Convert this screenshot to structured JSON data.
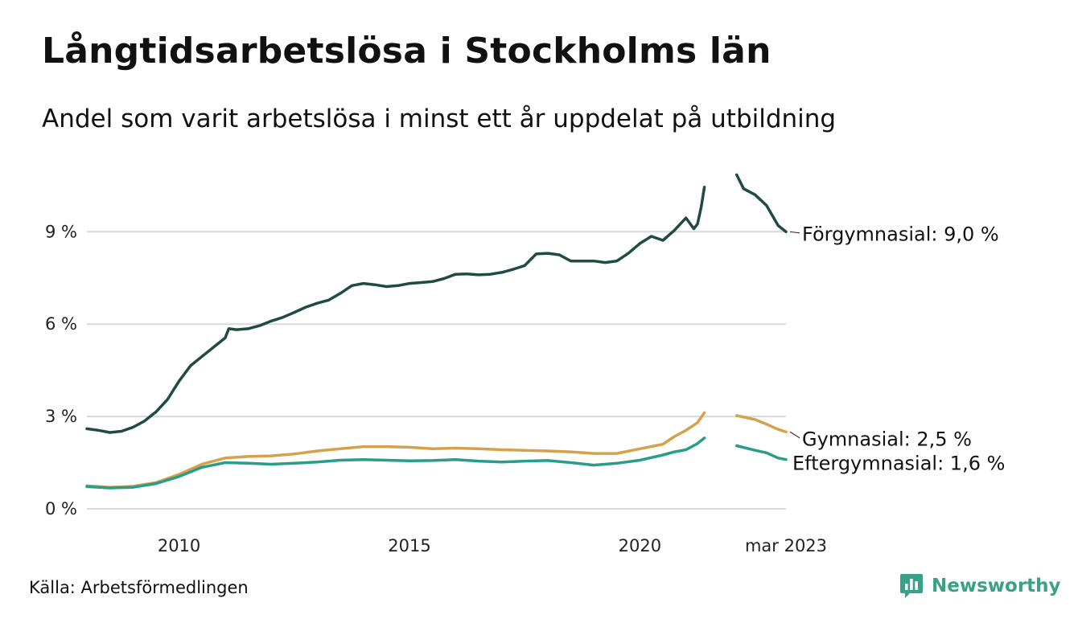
{
  "title": "Långtidsarbetslösa i Stockholms län",
  "subtitle": "Andel som varit arbetslösa i minst ett år uppdelat på utbildning",
  "source": "Källa: Arbetsförmedlingen",
  "brand": {
    "name": "Newsworthy",
    "icon": "newsworthy-logo-icon",
    "color": "#3aa088"
  },
  "chart_data": {
    "type": "line",
    "title": "Långtidsarbetslösa i Stockholms län",
    "subtitle": "Andel som varit arbetslösa i minst ett år uppdelat på utbildning",
    "xlabel": "",
    "ylabel": "",
    "xlim": [
      2008.0,
      2023.17
    ],
    "ylim": [
      0,
      11
    ],
    "grid": true,
    "legend": "end-labels",
    "y_ticks": [
      {
        "value": 0,
        "label": "0 %"
      },
      {
        "value": 3,
        "label": "3 %"
      },
      {
        "value": 6,
        "label": "6 %"
      },
      {
        "value": 9,
        "label": "9 %"
      }
    ],
    "x_ticks": [
      {
        "value": 2010,
        "label": "2010"
      },
      {
        "value": 2015,
        "label": "2015"
      },
      {
        "value": 2020,
        "label": "2020"
      },
      {
        "value": 2023.17,
        "label": "mar 2023"
      }
    ],
    "gap": [
      2021.4,
      2022.1
    ],
    "series": [
      {
        "name": "Förgymnasial",
        "end_label": "Förgymnasial: 9,0 %",
        "color": "#1f4b43",
        "points": [
          [
            2008.0,
            2.6
          ],
          [
            2008.25,
            2.55
          ],
          [
            2008.5,
            2.48
          ],
          [
            2008.75,
            2.52
          ],
          [
            2009.0,
            2.65
          ],
          [
            2009.25,
            2.85
          ],
          [
            2009.5,
            3.15
          ],
          [
            2009.75,
            3.55
          ],
          [
            2010.0,
            4.15
          ],
          [
            2010.25,
            4.65
          ],
          [
            2010.5,
            4.95
          ],
          [
            2010.75,
            5.25
          ],
          [
            2011.0,
            5.55
          ],
          [
            2011.08,
            5.85
          ],
          [
            2011.25,
            5.82
          ],
          [
            2011.5,
            5.85
          ],
          [
            2011.75,
            5.95
          ],
          [
            2012.0,
            6.1
          ],
          [
            2012.25,
            6.22
          ],
          [
            2012.5,
            6.38
          ],
          [
            2012.75,
            6.55
          ],
          [
            2013.0,
            6.68
          ],
          [
            2013.25,
            6.78
          ],
          [
            2013.5,
            7.0
          ],
          [
            2013.75,
            7.25
          ],
          [
            2014.0,
            7.32
          ],
          [
            2014.25,
            7.28
          ],
          [
            2014.5,
            7.22
          ],
          [
            2014.75,
            7.25
          ],
          [
            2015.0,
            7.32
          ],
          [
            2015.25,
            7.35
          ],
          [
            2015.5,
            7.38
          ],
          [
            2015.75,
            7.48
          ],
          [
            2016.0,
            7.62
          ],
          [
            2016.25,
            7.63
          ],
          [
            2016.5,
            7.6
          ],
          [
            2016.75,
            7.62
          ],
          [
            2017.0,
            7.68
          ],
          [
            2017.25,
            7.78
          ],
          [
            2017.5,
            7.9
          ],
          [
            2017.75,
            8.28
          ],
          [
            2018.0,
            8.3
          ],
          [
            2018.25,
            8.25
          ],
          [
            2018.5,
            8.05
          ],
          [
            2018.75,
            8.05
          ],
          [
            2019.0,
            8.05
          ],
          [
            2019.25,
            8.0
          ],
          [
            2019.5,
            8.05
          ],
          [
            2019.75,
            8.3
          ],
          [
            2020.0,
            8.62
          ],
          [
            2020.25,
            8.85
          ],
          [
            2020.5,
            8.72
          ],
          [
            2020.75,
            9.05
          ],
          [
            2021.0,
            9.45
          ],
          [
            2021.17,
            9.1
          ],
          [
            2021.25,
            9.25
          ],
          [
            2021.33,
            9.8
          ],
          [
            2021.4,
            10.45
          ],
          [
            2022.1,
            10.85
          ],
          [
            2022.25,
            10.4
          ],
          [
            2022.5,
            10.2
          ],
          [
            2022.75,
            9.85
          ],
          [
            2023.0,
            9.2
          ],
          [
            2023.17,
            9.0
          ]
        ]
      },
      {
        "name": "Gymnasial",
        "end_label": "Gymnasial: 2,5 %",
        "color": "#d4a24c",
        "points": [
          [
            2008.0,
            0.75
          ],
          [
            2008.5,
            0.7
          ],
          [
            2009.0,
            0.73
          ],
          [
            2009.5,
            0.85
          ],
          [
            2010.0,
            1.12
          ],
          [
            2010.5,
            1.45
          ],
          [
            2011.0,
            1.65
          ],
          [
            2011.5,
            1.7
          ],
          [
            2012.0,
            1.72
          ],
          [
            2012.5,
            1.78
          ],
          [
            2013.0,
            1.88
          ],
          [
            2013.5,
            1.95
          ],
          [
            2014.0,
            2.02
          ],
          [
            2014.5,
            2.02
          ],
          [
            2015.0,
            2.0
          ],
          [
            2015.5,
            1.95
          ],
          [
            2016.0,
            1.97
          ],
          [
            2016.5,
            1.95
          ],
          [
            2017.0,
            1.92
          ],
          [
            2017.5,
            1.9
          ],
          [
            2018.0,
            1.88
          ],
          [
            2018.5,
            1.85
          ],
          [
            2019.0,
            1.8
          ],
          [
            2019.5,
            1.8
          ],
          [
            2020.0,
            1.95
          ],
          [
            2020.5,
            2.1
          ],
          [
            2020.75,
            2.35
          ],
          [
            2021.0,
            2.55
          ],
          [
            2021.25,
            2.8
          ],
          [
            2021.4,
            3.12
          ],
          [
            2022.1,
            3.03
          ],
          [
            2022.5,
            2.9
          ],
          [
            2022.75,
            2.75
          ],
          [
            2023.0,
            2.58
          ],
          [
            2023.17,
            2.5
          ]
        ]
      },
      {
        "name": "Eftergymnasial",
        "end_label": "Eftergymnasial: 1,6 %",
        "color": "#2a9d8a",
        "points": [
          [
            2008.0,
            0.72
          ],
          [
            2008.5,
            0.68
          ],
          [
            2009.0,
            0.7
          ],
          [
            2009.5,
            0.82
          ],
          [
            2010.0,
            1.05
          ],
          [
            2010.5,
            1.35
          ],
          [
            2011.0,
            1.5
          ],
          [
            2011.5,
            1.48
          ],
          [
            2012.0,
            1.45
          ],
          [
            2012.5,
            1.48
          ],
          [
            2013.0,
            1.52
          ],
          [
            2013.5,
            1.58
          ],
          [
            2014.0,
            1.6
          ],
          [
            2014.5,
            1.58
          ],
          [
            2015.0,
            1.56
          ],
          [
            2015.5,
            1.57
          ],
          [
            2016.0,
            1.6
          ],
          [
            2016.5,
            1.55
          ],
          [
            2017.0,
            1.52
          ],
          [
            2017.5,
            1.55
          ],
          [
            2018.0,
            1.57
          ],
          [
            2018.5,
            1.5
          ],
          [
            2019.0,
            1.42
          ],
          [
            2019.5,
            1.48
          ],
          [
            2020.0,
            1.58
          ],
          [
            2020.5,
            1.75
          ],
          [
            2020.75,
            1.85
          ],
          [
            2021.0,
            1.92
          ],
          [
            2021.25,
            2.12
          ],
          [
            2021.4,
            2.3
          ],
          [
            2022.1,
            2.05
          ],
          [
            2022.5,
            1.9
          ],
          [
            2022.75,
            1.82
          ],
          [
            2023.0,
            1.65
          ],
          [
            2023.17,
            1.6
          ]
        ]
      }
    ]
  }
}
